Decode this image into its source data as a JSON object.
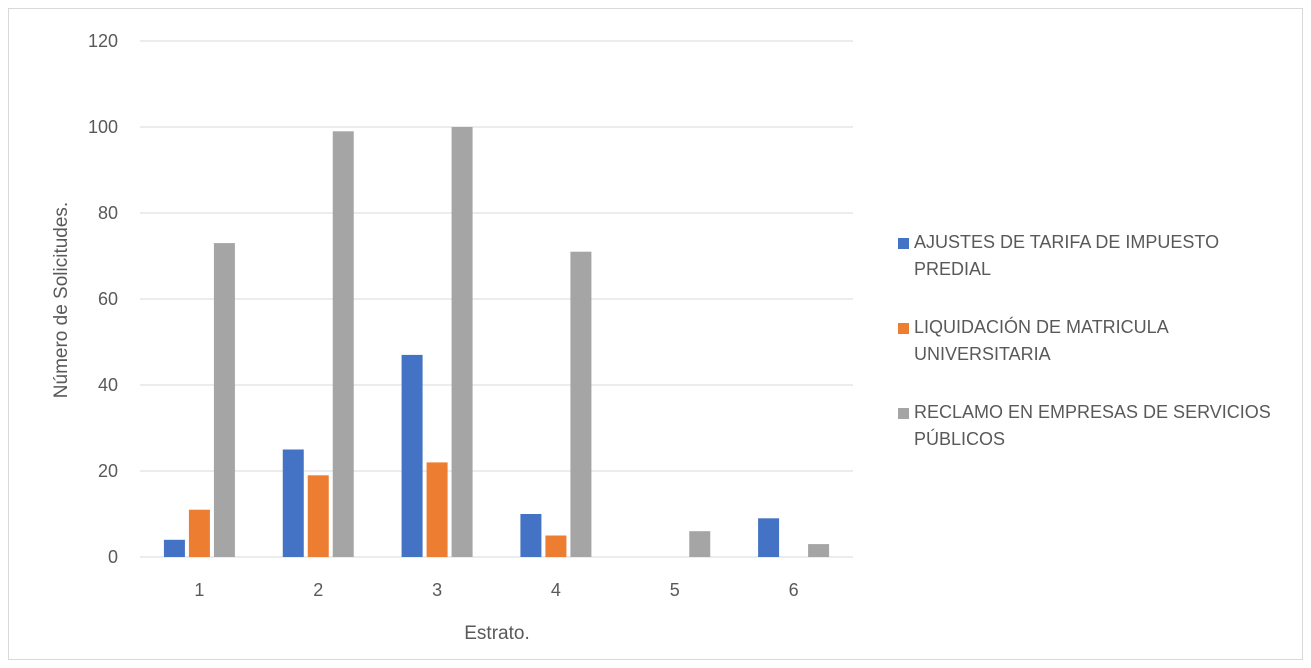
{
  "chart_data": {
    "type": "bar",
    "categories": [
      "1",
      "2",
      "3",
      "4",
      "5",
      "6"
    ],
    "series": [
      {
        "name": "AJUSTES DE TARIFA DE IMPUESTO PREDIAL",
        "name_lines": [
          "AJUSTES DE TARIFA DE IMPUESTO",
          "PREDIAL"
        ],
        "color": "#4472c4",
        "values": [
          4,
          25,
          47,
          10,
          0,
          9
        ]
      },
      {
        "name": "LIQUIDACIÓN DE MATRICULA UNIVERSITARIA",
        "name_lines": [
          "LIQUIDACIÓN DE MATRICULA",
          "UNIVERSITARIA"
        ],
        "color": "#ed7d31",
        "values": [
          11,
          19,
          22,
          5,
          0,
          0
        ]
      },
      {
        "name": "RECLAMO EN EMPRESAS DE SERVICIOS PÚBLICOS",
        "name_lines": [
          "RECLAMO EN EMPRESAS DE SERVICIOS",
          "PÚBLICOS"
        ],
        "color": "#a5a5a5",
        "values": [
          73,
          99,
          100,
          71,
          6,
          3
        ]
      }
    ],
    "xlabel": "Estrato.",
    "ylabel": "Número de Solicitudes.",
    "ylim": [
      0,
      120
    ],
    "yticks": [
      "0",
      "20",
      "40",
      "60",
      "80",
      "100",
      "120"
    ],
    "grid": true,
    "legend_position": "right"
  }
}
